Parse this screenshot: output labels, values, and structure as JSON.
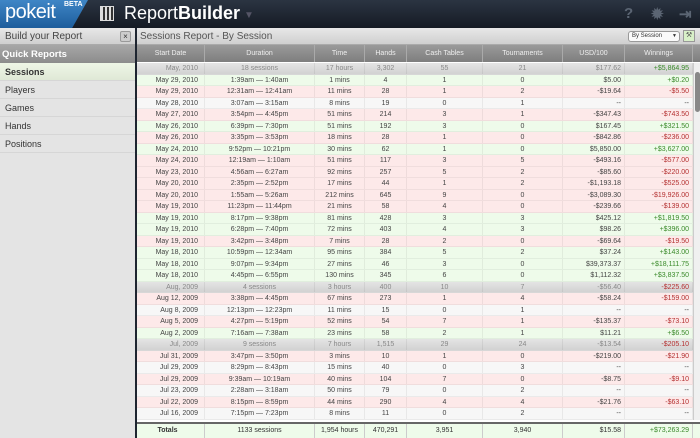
{
  "app": {
    "logo": "pokeit",
    "beta": "BETA",
    "title_light": "Report",
    "title_bold": "Builder"
  },
  "toolbar": {
    "icons": [
      "help-icon",
      "gear-icon",
      "logout-icon"
    ]
  },
  "sidebar": {
    "title": "Build your Report",
    "close": "×",
    "section": "Quick Reports",
    "items": [
      {
        "label": "Sessions",
        "active": true
      },
      {
        "label": "Players"
      },
      {
        "label": "Games"
      },
      {
        "label": "Hands"
      },
      {
        "label": "Positions"
      }
    ]
  },
  "report": {
    "title": "Sessions Report - By Session",
    "view": "By Session"
  },
  "columns": [
    "Start Date",
    "Duration",
    "Time",
    "Hands",
    "Cash Tables",
    "Tournaments",
    "USD/100",
    "Winnings"
  ],
  "rows": [
    {
      "type": "group",
      "cells": [
        "May, 2010",
        "18 sessions",
        "17 hours",
        "3,302",
        "55",
        "21",
        "$177.62",
        "+$5,864.95"
      ]
    },
    {
      "cells": [
        "May 29, 2010",
        "1:39am — 1:40am",
        "1 mins",
        "4",
        "1",
        "0",
        "$5.00",
        "+$0.20"
      ]
    },
    {
      "cells": [
        "May 29, 2010",
        "12:31am — 12:41am",
        "11 mins",
        "28",
        "1",
        "2",
        "-$19.64",
        "-$5.50"
      ]
    },
    {
      "cells": [
        "May 28, 2010",
        "3:07am — 3:15am",
        "8 mins",
        "19",
        "0",
        "1",
        "--",
        "--"
      ]
    },
    {
      "cells": [
        "May 27, 2010",
        "3:54pm — 4:45pm",
        "51 mins",
        "214",
        "3",
        "1",
        "-$347.43",
        "-$743.50"
      ]
    },
    {
      "cells": [
        "May 26, 2010",
        "6:39pm — 7:30pm",
        "51 mins",
        "192",
        "3",
        "0",
        "$167.45",
        "+$321.50"
      ]
    },
    {
      "cells": [
        "May 26, 2010",
        "3:35pm — 3:53pm",
        "18 mins",
        "28",
        "1",
        "0",
        "-$842.86",
        "-$236.00"
      ]
    },
    {
      "cells": [
        "May 24, 2010",
        "9:52pm — 10:21pm",
        "30 mins",
        "62",
        "1",
        "0",
        "$5,850.00",
        "+$3,627.00"
      ]
    },
    {
      "cells": [
        "May 24, 2010",
        "12:19am — 1:10am",
        "51 mins",
        "117",
        "3",
        "5",
        "-$493.16",
        "-$577.00"
      ]
    },
    {
      "cells": [
        "May 23, 2010",
        "4:56am — 6:27am",
        "92 mins",
        "257",
        "5",
        "2",
        "-$85.60",
        "-$220.00"
      ]
    },
    {
      "cells": [
        "May 20, 2010",
        "2:35pm — 2:52pm",
        "17 mins",
        "44",
        "1",
        "2",
        "-$1,193.18",
        "-$525.00"
      ]
    },
    {
      "cells": [
        "May 20, 2010",
        "1:55am — 5:26am",
        "212 mins",
        "645",
        "9",
        "0",
        "-$3,089.30",
        "-$19,926.00"
      ]
    },
    {
      "cells": [
        "May 19, 2010",
        "11:23pm — 11:44pm",
        "21 mins",
        "58",
        "4",
        "0",
        "-$239.66",
        "-$139.00"
      ]
    },
    {
      "cells": [
        "May 19, 2010",
        "8:17pm — 9:38pm",
        "81 mins",
        "428",
        "3",
        "3",
        "$425.12",
        "+$1,819.50"
      ]
    },
    {
      "cells": [
        "May 19, 2010",
        "6:28pm — 7:40pm",
        "72 mins",
        "403",
        "4",
        "3",
        "$98.26",
        "+$396.00"
      ]
    },
    {
      "cells": [
        "May 19, 2010",
        "3:42pm — 3:48pm",
        "7 mins",
        "28",
        "2",
        "0",
        "-$69.64",
        "-$19.50"
      ]
    },
    {
      "cells": [
        "May 18, 2010",
        "10:59pm — 12:34am",
        "95 mins",
        "384",
        "5",
        "2",
        "$37.24",
        "+$143.00"
      ]
    },
    {
      "cells": [
        "May 18, 2010",
        "9:07pm — 9:34pm",
        "27 mins",
        "46",
        "3",
        "0",
        "$39,373.37",
        "+$18,111.75"
      ]
    },
    {
      "cells": [
        "May 18, 2010",
        "4:45pm — 6:55pm",
        "130 mins",
        "345",
        "6",
        "0",
        "$1,112.32",
        "+$3,837.50"
      ]
    },
    {
      "type": "group",
      "cells": [
        "Aug, 2009",
        "4 sessions",
        "3 hours",
        "400",
        "10",
        "7",
        "-$56.40",
        "-$225.60"
      ]
    },
    {
      "cells": [
        "Aug 12, 2009",
        "3:38pm — 4:45pm",
        "67 mins",
        "273",
        "1",
        "4",
        "-$58.24",
        "-$159.00"
      ]
    },
    {
      "cells": [
        "Aug 8, 2009",
        "12:13pm — 12:23pm",
        "11 mins",
        "15",
        "0",
        "1",
        "--",
        "--"
      ]
    },
    {
      "cells": [
        "Aug 5, 2009",
        "4:27pm — 5:19pm",
        "52 mins",
        "54",
        "7",
        "1",
        "-$135.37",
        "-$73.10"
      ]
    },
    {
      "cells": [
        "Aug 2, 2009",
        "7:16am — 7:38am",
        "23 mins",
        "58",
        "2",
        "1",
        "$11.21",
        "+$6.50"
      ]
    },
    {
      "type": "group",
      "cells": [
        "Jul, 2009",
        "9 sessions",
        "7 hours",
        "1,515",
        "29",
        "24",
        "-$13.54",
        "-$205.10"
      ]
    },
    {
      "cells": [
        "Jul 31, 2009",
        "3:47pm — 3:50pm",
        "3 mins",
        "10",
        "1",
        "0",
        "-$219.00",
        "-$21.90"
      ]
    },
    {
      "cells": [
        "Jul 29, 2009",
        "8:29pm — 8:43pm",
        "15 mins",
        "40",
        "0",
        "3",
        "--",
        "--"
      ]
    },
    {
      "cells": [
        "Jul 29, 2009",
        "9:39am — 10:19am",
        "40 mins",
        "104",
        "7",
        "0",
        "-$8.75",
        "-$9.10"
      ]
    },
    {
      "cells": [
        "Jul 23, 2009",
        "2:28am — 3:18am",
        "50 mins",
        "79",
        "0",
        "2",
        "--",
        "--"
      ]
    },
    {
      "cells": [
        "Jul 22, 2009",
        "8:15pm — 8:59pm",
        "44 mins",
        "290",
        "4",
        "4",
        "-$21.76",
        "-$63.10"
      ]
    },
    {
      "cells": [
        "Jul 16, 2009",
        "7:15pm — 7:23pm",
        "8 mins",
        "11",
        "0",
        "2",
        "--",
        "--"
      ]
    }
  ],
  "totals": [
    "Totals",
    "1133 sessions",
    "1,954 hours",
    "470,291",
    "3,951",
    "3,940",
    "$15.58",
    "+$73,263.29"
  ],
  "colors": {
    "win_row": "#eefbea",
    "loss_row": "#fde9e9",
    "positive": "#3a8a2a",
    "negative": "#b43030"
  }
}
